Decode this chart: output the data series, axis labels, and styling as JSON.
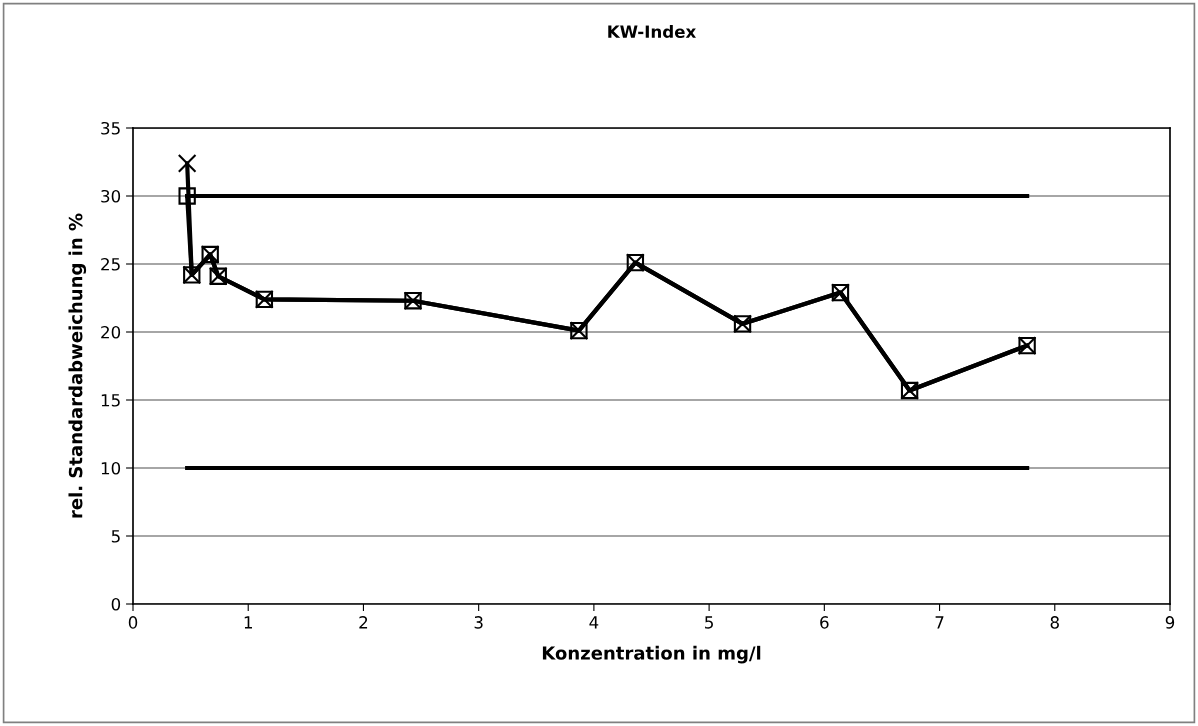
{
  "chart_data": {
    "type": "line",
    "title": "KW-Index",
    "xlabel": "Konzentration in mg/l",
    "ylabel": "rel. Standardabweichung in %",
    "xlim": [
      0,
      9
    ],
    "xticks": [
      0,
      1,
      2,
      3,
      4,
      5,
      6,
      7,
      8,
      9
    ],
    "ylim": [
      0,
      35
    ],
    "yticks": [
      0,
      5,
      10,
      15,
      20,
      25,
      30,
      35
    ],
    "grid": "y",
    "line_style": "solid",
    "series": [
      {
        "color": "#000000",
        "marker": "square",
        "x": [
          0.47,
          0.51,
          0.67,
          0.74,
          1.14,
          2.43,
          3.87,
          4.36,
          5.29,
          6.14,
          6.74,
          7.76
        ],
        "values": [
          30.0,
          24.2,
          25.7,
          24.1,
          22.4,
          22.3,
          20.1,
          25.1,
          20.6,
          22.9,
          15.7,
          19.0
        ]
      },
      {
        "color": "#000000",
        "marker": "cross",
        "x": [
          0.47,
          0.51,
          0.67,
          0.74,
          1.14,
          2.43,
          3.87,
          4.36,
          5.29,
          6.14,
          6.74,
          7.76
        ],
        "values": [
          32.4,
          24.2,
          25.7,
          24.1,
          22.4,
          22.3,
          20.1,
          25.1,
          20.6,
          22.9,
          15.7,
          19.0
        ]
      },
      {
        "color": "#000000",
        "marker": "none",
        "x": [
          0.47,
          7.76
        ],
        "values": [
          30,
          30
        ]
      },
      {
        "color": "#000000",
        "marker": "none",
        "x": [
          0.47,
          7.76
        ],
        "values": [
          10,
          10
        ]
      }
    ]
  }
}
